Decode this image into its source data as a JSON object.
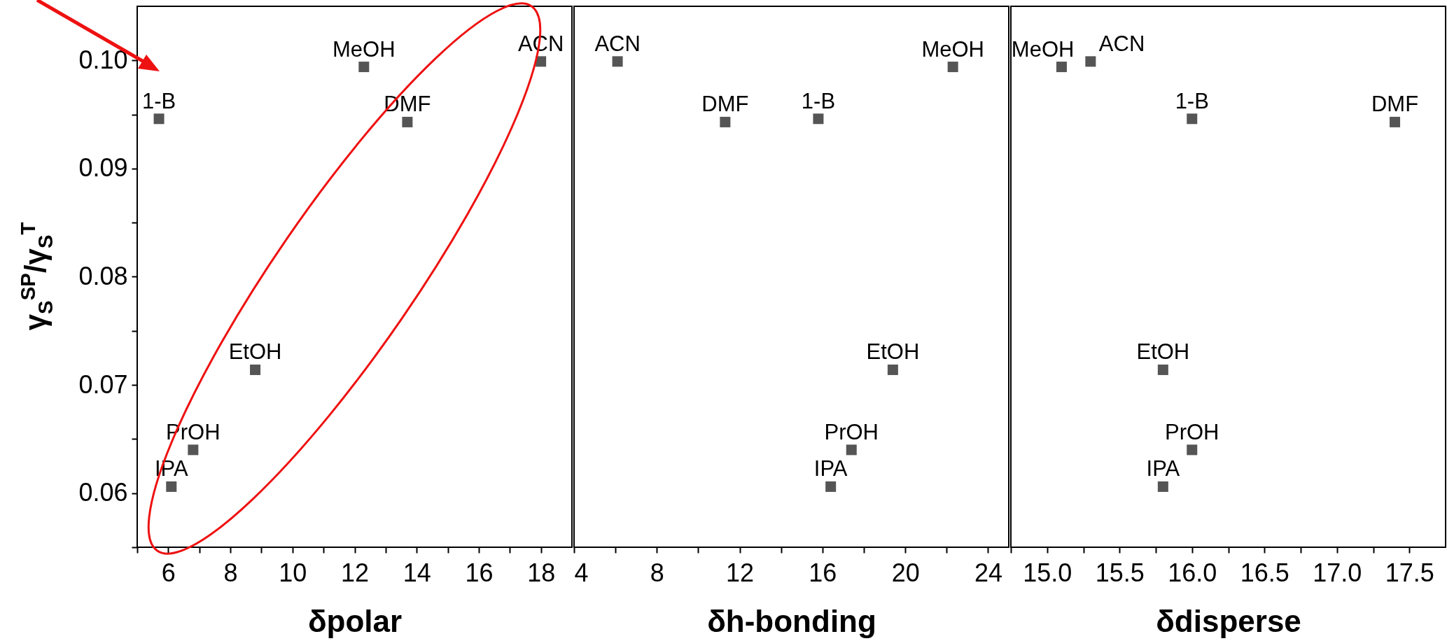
{
  "chart_data": [
    {
      "type": "scatter",
      "xlabel": "δpolar",
      "ylabel": "γ$_{S}$$^{SP}$/γ$_{S}$$^{T}$",
      "marker": "square",
      "xlim": [
        5,
        19
      ],
      "ylim": [
        0.055,
        0.105
      ],
      "xticks": [
        {
          "value": 5,
          "label": null
        },
        6,
        {
          "value": 7,
          "label": null
        },
        8,
        {
          "value": 9,
          "label": null
        },
        10,
        {
          "value": 11,
          "label": null
        },
        12,
        {
          "value": 13,
          "label": null
        },
        14,
        {
          "value": 15,
          "label": null
        },
        16,
        {
          "value": 17,
          "label": null
        },
        18
      ],
      "yticks": [
        {
          "value": 0.055,
          "label": null
        },
        0.06,
        {
          "value": 0.065,
          "label": null
        },
        0.07,
        {
          "value": 0.075,
          "label": null
        },
        0.08,
        {
          "value": 0.085,
          "label": null
        },
        0.09,
        {
          "value": 0.095,
          "label": null
        },
        {
          "value": 0.1,
          "label": "0.10"
        }
      ],
      "series": [
        {
          "name": "1-B",
          "color": "#555555",
          "x": [
            5.7
          ],
          "values": [
            0.0946
          ]
        },
        {
          "name": "IPA",
          "color": "#555555",
          "x": [
            6.1
          ],
          "values": [
            0.0606
          ]
        },
        {
          "name": "PrOH",
          "color": "#555555",
          "x": [
            6.8
          ],
          "values": [
            0.064
          ]
        },
        {
          "name": "EtOH",
          "color": "#555555",
          "x": [
            8.8
          ],
          "values": [
            0.0714
          ]
        },
        {
          "name": "MeOH",
          "color": "#555555",
          "x": [
            12.3
          ],
          "values": [
            0.0994
          ]
        },
        {
          "name": "DMF",
          "color": "#555555",
          "x": [
            13.7
          ],
          "values": [
            0.0943
          ]
        },
        {
          "name": "ACN",
          "color": "#555555",
          "x": [
            18.0
          ],
          "values": [
            0.0999
          ]
        }
      ]
    },
    {
      "type": "scatter",
      "xlabel": "δh-bonding",
      "marker": "square",
      "xlim": [
        4,
        25
      ],
      "ylim": [
        0.055,
        0.105
      ],
      "tick_labels": "x",
      "xticks": [
        4,
        {
          "value": 6,
          "label": null
        },
        8,
        {
          "value": 10,
          "label": null
        },
        12,
        {
          "value": 14,
          "label": null
        },
        16,
        {
          "value": 18,
          "label": null
        },
        20,
        {
          "value": 22,
          "label": null
        },
        24
      ],
      "series": [
        {
          "name": "ACN",
          "color": "#555555",
          "x": [
            6.1
          ],
          "values": [
            0.0999
          ]
        },
        {
          "name": "DMF",
          "color": "#555555",
          "x": [
            11.3
          ],
          "values": [
            0.0943
          ]
        },
        {
          "name": "1-B",
          "color": "#555555",
          "x": [
            15.8
          ],
          "values": [
            0.0946
          ]
        },
        {
          "name": "MeOH",
          "color": "#555555",
          "x": [
            22.3
          ],
          "values": [
            0.0994
          ]
        },
        {
          "name": "EtOH",
          "color": "#555555",
          "x": [
            19.4
          ],
          "values": [
            0.0714
          ]
        },
        {
          "name": "PrOH",
          "color": "#555555",
          "x": [
            17.4
          ],
          "values": [
            0.064
          ]
        },
        {
          "name": "IPA",
          "color": "#555555",
          "x": [
            16.4
          ],
          "values": [
            0.0606
          ]
        }
      ]
    },
    {
      "type": "scatter",
      "xlabel": "δdisperse",
      "marker": "square",
      "xlim": [
        14.75,
        17.75
      ],
      "ylim": [
        0.055,
        0.105
      ],
      "tick_labels": "x",
      "xticks": [
        {
          "value": 14.75,
          "label": null
        },
        {
          "value": 15,
          "label": "15.0"
        },
        {
          "value": 15.25,
          "label": null
        },
        15.5,
        {
          "value": 15.75,
          "label": null
        },
        {
          "value": 16,
          "label": "16.0"
        },
        {
          "value": 16.25,
          "label": null
        },
        16.5,
        {
          "value": 16.75,
          "label": null
        },
        {
          "value": 17,
          "label": "17.0"
        },
        {
          "value": 17.25,
          "label": null
        },
        17.5
      ],
      "series": [
        {
          "name": "MeOH",
          "color": "#555555",
          "x": [
            15.1
          ],
          "values": [
            0.0994
          ]
        },
        {
          "name": "ACN",
          "color": "#555555",
          "x": [
            15.3
          ],
          "values": [
            0.0999
          ]
        },
        {
          "name": "1-B",
          "color": "#555555",
          "x": [
            16.0
          ],
          "values": [
            0.0946
          ]
        },
        {
          "name": "DMF",
          "color": "#555555",
          "x": [
            17.4
          ],
          "values": [
            0.0943
          ]
        },
        {
          "name": "EtOH",
          "color": "#555555",
          "x": [
            15.8
          ],
          "values": [
            0.0714
          ]
        },
        {
          "name": "PrOH",
          "color": "#555555",
          "x": [
            16.0
          ],
          "values": [
            0.064
          ]
        },
        {
          "name": "IPA",
          "color": "#555555",
          "x": [
            15.8
          ],
          "values": [
            0.0606
          ]
        }
      ]
    }
  ]
}
